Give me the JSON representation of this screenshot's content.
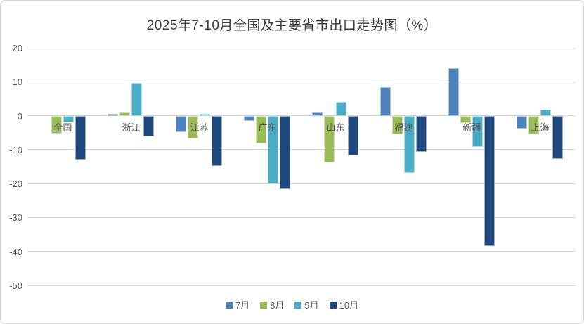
{
  "chart_data": {
    "type": "bar",
    "title": "2025年7-10月全国及主要省市出口走势图（%）",
    "categories": [
      "全国",
      "浙江",
      "江苏",
      "广东",
      "山东",
      "福建",
      "新疆",
      "上海"
    ],
    "series": [
      {
        "name": "7月",
        "color": "#4F81BD",
        "values": [
          0.0,
          0.6,
          -4.8,
          -1.6,
          1.0,
          8.3,
          13.9,
          -3.9
        ]
      },
      {
        "name": "8月",
        "color": "#9BBB59",
        "values": [
          -5.2,
          1.0,
          -6.7,
          -8.1,
          -13.8,
          -5.4,
          -2.1,
          -5.4
        ]
      },
      {
        "name": "9月",
        "color": "#4BACC6",
        "values": [
          -1.9,
          9.7,
          0.5,
          -20.0,
          4.1,
          -16.9,
          -9.3,
          1.8
        ]
      },
      {
        "name": "10月",
        "color": "#1F497D",
        "values": [
          -13.0,
          -6.0,
          -14.7,
          -21.7,
          -11.6,
          -10.7,
          -38.4,
          -12.7
        ]
      }
    ],
    "ylim": [
      -50,
      20
    ],
    "yticks": [
      20,
      10,
      0,
      -10,
      -20,
      -30,
      -40,
      -50
    ],
    "grid": "horizontal-only",
    "legend_position": "bottom",
    "title_color": "#3f3f3f",
    "axis_text_color": "#595959",
    "grid_color": "#d9d9d9"
  }
}
